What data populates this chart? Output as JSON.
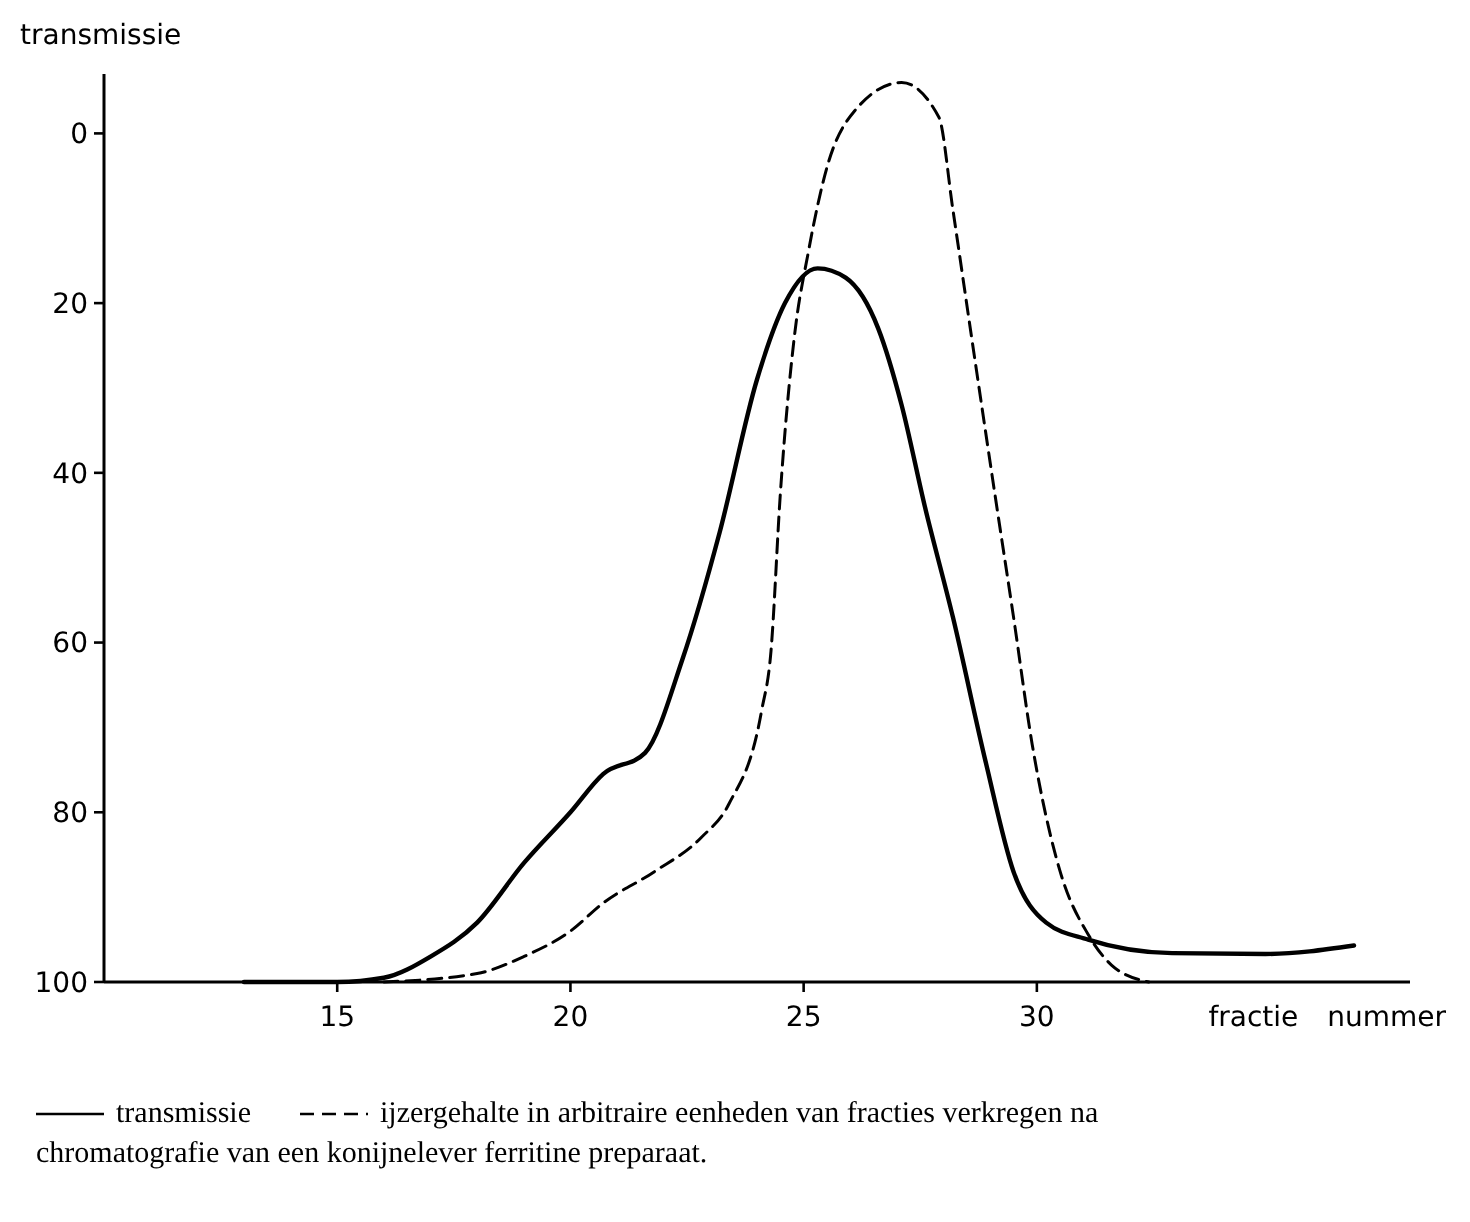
{
  "chart_data": {
    "type": "line",
    "ylabel": "transmissie",
    "xlabel": "fractie nummer",
    "xlim": [
      10,
      38
    ],
    "ylim": [
      100,
      -7
    ],
    "xticks": [
      15,
      20,
      25,
      30
    ],
    "yticks": [
      0,
      20,
      40,
      60,
      80,
      100
    ],
    "grid": false,
    "legend": "bottom",
    "marker": "none",
    "series": [
      {
        "name": "transmissie",
        "color": "#000000",
        "line_style": "solid",
        "x": [
          13,
          15,
          16,
          17,
          18,
          19,
          20,
          20.7,
          21.6,
          22.4,
          23.2,
          24.0,
          24.6,
          25.3,
          25.9,
          26.6,
          27.1,
          27.6,
          28.2,
          28.9,
          29.5,
          30.2,
          31.1,
          32.9,
          34.9,
          36.8
        ],
        "values": [
          100,
          100,
          99.5,
          97,
          93,
          86,
          80,
          75.5,
          73,
          62,
          47,
          29,
          20,
          15.9,
          17,
          23,
          32,
          44,
          57,
          74,
          87,
          93,
          95,
          96.6,
          96.7,
          95.7
        ]
      },
      {
        "name": "ijzergehalte in arbitraire eenheden van fracties verkregen na chromatografie van een konijnelever ferritine preparaat.",
        "color": "#000000",
        "line_style": "dashed",
        "x": [
          16,
          18,
          19,
          20,
          20.7,
          21.8,
          22.8,
          23.4,
          24.1,
          24.3,
          24.5,
          24.8,
          25.1,
          25.5,
          26.1,
          27.1,
          27.9,
          28.2,
          28.6,
          29.1,
          29.5,
          29.9,
          30.5,
          31.1,
          31.6,
          32.4
        ],
        "values": [
          100,
          99,
          97,
          94,
          90.7,
          87,
          83,
          79,
          68,
          61,
          42.5,
          24,
          14,
          4,
          -2.7,
          -6,
          -1.9,
          9,
          24,
          42.5,
          57,
          72,
          87,
          94.4,
          98,
          100
        ]
      }
    ]
  }
}
